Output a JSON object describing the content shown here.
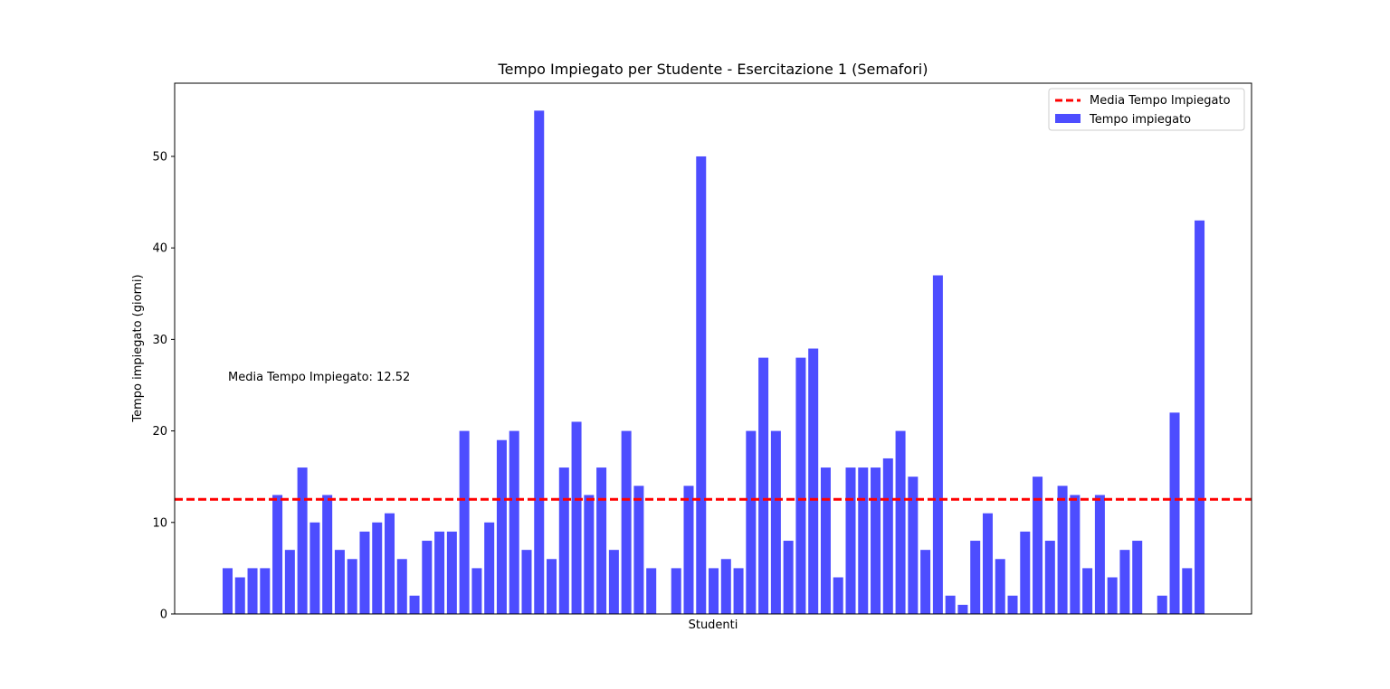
{
  "chart_data": {
    "type": "bar",
    "title": "Tempo Impiegato per Studente - Esercitazione 1 (Semafori)",
    "xlabel": "Studenti",
    "ylabel": "Tempo impiegato (giorni)",
    "ylim": [
      0,
      58
    ],
    "yticks": [
      0,
      10,
      20,
      30,
      40,
      50
    ],
    "ytick_labels": [
      "0",
      "10",
      "20",
      "30",
      "40",
      "50"
    ],
    "grid": false,
    "values": [
      5,
      4,
      5,
      5,
      13,
      7,
      16,
      10,
      13,
      7,
      6,
      9,
      10,
      11,
      6,
      2,
      8,
      9,
      9,
      20,
      5,
      10,
      19,
      20,
      7,
      55,
      6,
      16,
      21,
      13,
      16,
      7,
      20,
      14,
      5,
      0,
      5,
      14,
      50,
      5,
      6,
      5,
      20,
      28,
      20,
      8,
      28,
      29,
      16,
      4,
      16,
      16,
      16,
      17,
      20,
      15,
      7,
      37,
      2,
      1,
      8,
      11,
      6,
      2,
      9,
      15,
      8,
      14,
      13,
      5,
      13,
      4,
      7,
      8,
      0,
      2,
      22,
      5,
      43
    ],
    "mean": 12.52,
    "mean_line_color": "#ff0000",
    "bar_color": "#4d4dff",
    "annotation": "Media Tempo Impiegato: 12.52",
    "legend": {
      "placement": "top-right",
      "entries": [
        {
          "label": "Media Tempo Impiegato",
          "kind": "line",
          "color": "#ff0000"
        },
        {
          "label": "Tempo impiegato",
          "kind": "bar",
          "color": "#4d4dff"
        }
      ]
    }
  }
}
